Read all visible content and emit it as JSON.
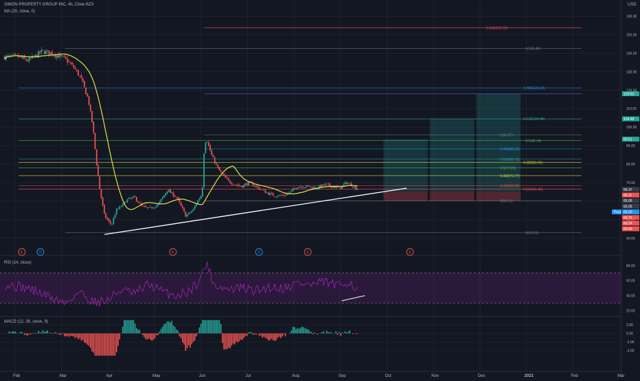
{
  "header": {
    "symbol": "SIMON PROPERTY GROUP INC, 4h, Cboe BZX",
    "ma_label": "MA (20, close, 0)",
    "rsi_label": "RSI (14, close)",
    "macd_label": "MACD (12, 26, close, 9)",
    "currency": "USD",
    "last_tag": "Post"
  },
  "colors": {
    "bg": "#131722",
    "up": "#26a69a",
    "down": "#ef5350",
    "ma": "#e7e34a",
    "rsi": "#9c27b0",
    "trend": "#ffffff"
  },
  "chart_data": [
    {
      "type": "candlestick",
      "title": "SIMON PROPERTY GROUP INC, 4h, Cboe BZX",
      "ylabel": "USD",
      "ylim": [
        37,
        165
      ],
      "y_ticks": [
        "160.00",
        "150.00",
        "140.00",
        "130.00",
        "120.00",
        "110.00",
        "100.00",
        "90.00",
        "80.00",
        "70.00",
        "60.00",
        "50.00",
        "40.00"
      ],
      "x_ticks": [
        "Feb",
        "Mar",
        "Apr",
        "May",
        "Jun",
        "Jul",
        "Aug",
        "Sep",
        "Oct",
        "Nov",
        "Dec",
        "2021",
        "Feb",
        "Mar"
      ],
      "close_path": [
        [
          0,
          138
        ],
        [
          0.2,
          136
        ],
        [
          0.4,
          139
        ],
        [
          0.5,
          141
        ],
        [
          0.7,
          140
        ],
        [
          0.9,
          138
        ],
        [
          1.0,
          137
        ],
        [
          1.2,
          132
        ],
        [
          1.35,
          126
        ],
        [
          1.5,
          115
        ],
        [
          1.6,
          100
        ],
        [
          1.68,
          80
        ],
        [
          1.75,
          66
        ],
        [
          1.85,
          52
        ],
        [
          2.0,
          47
        ],
        [
          2.1,
          55
        ],
        [
          2.2,
          57
        ],
        [
          2.35,
          61
        ],
        [
          2.5,
          62
        ],
        [
          2.65,
          57
        ],
        [
          2.8,
          56
        ],
        [
          3.0,
          58
        ],
        [
          3.2,
          66
        ],
        [
          3.4,
          62
        ],
        [
          3.6,
          52
        ],
        [
          3.75,
          55
        ],
        [
          3.85,
          60
        ],
        [
          3.95,
          64
        ],
        [
          4.0,
          92
        ],
        [
          4.05,
          93
        ],
        [
          4.15,
          85
        ],
        [
          4.3,
          77
        ],
        [
          4.5,
          71
        ],
        [
          4.65,
          69
        ],
        [
          4.8,
          68
        ],
        [
          4.95,
          70
        ],
        [
          5.1,
          68
        ],
        [
          5.3,
          65
        ],
        [
          5.5,
          63
        ],
        [
          5.7,
          63
        ],
        [
          5.85,
          65
        ],
        [
          6.0,
          68
        ],
        [
          6.2,
          68
        ],
        [
          6.4,
          67
        ],
        [
          6.6,
          69
        ],
        [
          6.75,
          68
        ],
        [
          6.9,
          67
        ],
        [
          7.05,
          70
        ],
        [
          7.15,
          69
        ],
        [
          7.25,
          67
        ]
      ],
      "ma20": {
        "name": "MA (20, close, 0)"
      },
      "fib_levels": [
        {
          "label": "1.618(153.72)",
          "value": 153.72,
          "color": "#ef5350"
        },
        {
          "label": "1(142.49)",
          "value": 142.49,
          "color": "#787b86"
        },
        {
          "label": "0.786(121.19)",
          "value": 121.19,
          "color": "#2196f3"
        },
        {
          "label": "0.618(104.48)",
          "value": 104.48,
          "color": "#26a69a"
        },
        {
          "label": "1(95.87)",
          "value": 95.87,
          "color": "#787b86"
        },
        {
          "label": "0.5(92.74)",
          "value": 92.74,
          "color": "#4caf50"
        },
        {
          "label": "0.786(88.22)",
          "value": 88.22,
          "color": "#2196f3"
        },
        {
          "label": "0.618(82.71)",
          "value": 82.71,
          "color": "#26a69a"
        },
        {
          "label": "0.382(81.01)",
          "value": 81.01,
          "color": "#cddc39"
        },
        {
          "label": "0.5(77.99)",
          "value": 77.99,
          "color": "#4caf50"
        },
        {
          "label": "0.382(73.77)",
          "value": 73.77,
          "color": "#cddc39"
        },
        {
          "label": "0.236(68.38)",
          "value": 68.38,
          "color": "#ef5350"
        },
        {
          "label": "0.236(66.46)",
          "value": 66.46,
          "color": "#ef5350"
        },
        {
          "label": "0(60.11)",
          "value": 60.11,
          "color": "#787b86"
        },
        {
          "label": "0(43.01)",
          "value": 43.01,
          "color": "#787b86"
        }
      ],
      "extra_line": {
        "value": 118,
        "color": "#3f51b5"
      },
      "boxes": [
        {
          "from_month": 7.85,
          "to_month": 8.8,
          "top": 93.51,
          "entry": 65.11,
          "stop": 60.11
        },
        {
          "from_month": 8.85,
          "to_month": 9.8,
          "top": 104.48,
          "entry": 65.11,
          "stop": 60.11
        },
        {
          "from_month": 9.85,
          "to_month": 10.8,
          "top": 118.03,
          "entry": 65.11,
          "stop": 60.11
        }
      ],
      "trendline": {
        "from": [
          1.85,
          42
        ],
        "to": [
          8.35,
          67
        ]
      },
      "price_tags": [
        {
          "label": "118.03",
          "value": 118.03,
          "color": "#26a69a"
        },
        {
          "label": "104.48",
          "value": 104.48,
          "color": "#26a69a"
        },
        {
          "label": "93.51",
          "value": 93.51,
          "color": "#26a69a"
        },
        {
          "label": "66.37",
          "value": 66.37,
          "color": "#363a45"
        },
        {
          "label": "65.11",
          "value": 65.11,
          "color": "#ef5350"
        },
        {
          "label": "65.06",
          "value": 65.06,
          "color": "#363a45"
        },
        {
          "label": "65.05",
          "value": 65.05,
          "color": "#363a45"
        },
        {
          "label": "65.00",
          "value": 65.0,
          "color": "#2196f3"
        },
        {
          "label": "60.75",
          "value": 60.75,
          "color": "#ef5350"
        },
        {
          "label": "60.24",
          "value": 60.24,
          "color": "#ef5350"
        },
        {
          "label": "60.09",
          "value": 60.09,
          "color": "#ef5350"
        }
      ],
      "event_markers": [
        {
          "label": "E",
          "month": -0.15,
          "color": "#ef5350"
        },
        {
          "label": "D",
          "month": 0.25,
          "color": "#2196f3"
        },
        {
          "label": "E",
          "month": 3.1,
          "color": "#ef5350"
        },
        {
          "label": "D",
          "month": 4.95,
          "color": "#2196f3"
        },
        {
          "label": "E",
          "month": 6.0,
          "color": "#ef5350"
        },
        {
          "label": "E",
          "month": 8.2,
          "color": "#ef5350"
        }
      ]
    },
    {
      "type": "line",
      "title": "RSI (14, close)",
      "ylim": [
        15,
        88
      ],
      "y_ticks": [
        "80.00",
        "60.00",
        "40.00",
        "20.00"
      ],
      "bands": [
        70,
        30
      ],
      "rsi_path": [
        [
          -0.3,
          55
        ],
        [
          0.2,
          50
        ],
        [
          0.6,
          40
        ],
        [
          1.0,
          30
        ],
        [
          1.3,
          45
        ],
        [
          1.6,
          32
        ],
        [
          1.9,
          33
        ],
        [
          2.2,
          48
        ],
        [
          2.5,
          42
        ],
        [
          2.8,
          55
        ],
        [
          3.1,
          45
        ],
        [
          3.4,
          40
        ],
        [
          3.7,
          47
        ],
        [
          3.9,
          62
        ],
        [
          4.05,
          84
        ],
        [
          4.2,
          55
        ],
        [
          4.5,
          48
        ],
        [
          4.8,
          50
        ],
        [
          5.1,
          46
        ],
        [
          5.4,
          52
        ],
        [
          5.7,
          50
        ],
        [
          6.0,
          57
        ],
        [
          6.3,
          54
        ],
        [
          6.6,
          58
        ],
        [
          6.9,
          52
        ],
        [
          7.1,
          60
        ],
        [
          7.3,
          46
        ]
      ],
      "divergence_line": {
        "from": [
          6.95,
          33
        ],
        "to": [
          7.45,
          40
        ]
      }
    },
    {
      "type": "bar",
      "title": "MACD (12, 26, close, 9)",
      "ylim": [
        -5.5,
        3.3
      ],
      "y_ticks": [
        "2.00",
        "0.00",
        "-2.00",
        "-4.00"
      ]
    }
  ]
}
